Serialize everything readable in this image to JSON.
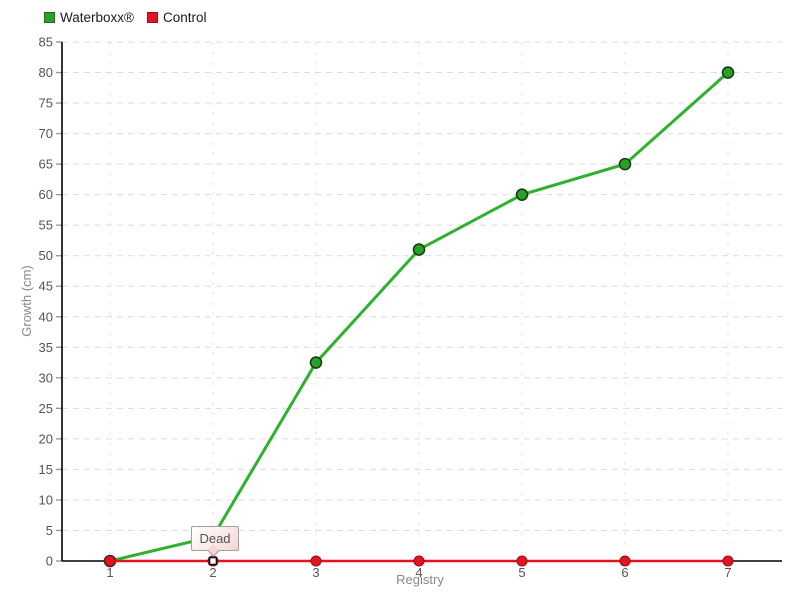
{
  "chart_data": {
    "type": "line",
    "x": [
      1,
      2,
      3,
      4,
      5,
      6,
      7
    ],
    "series": [
      {
        "name": "Waterboxx®",
        "color": "#2eb22e",
        "marker_fill": "#27a127",
        "marker_stroke": "#143f14",
        "values": [
          0,
          4,
          32.5,
          51,
          60,
          65,
          80
        ]
      },
      {
        "name": "Control",
        "color": "#e11422",
        "marker_fill": "#e11422",
        "marker_stroke": "#9d0f18",
        "values": [
          0,
          0,
          0,
          0,
          0,
          0,
          0
        ]
      }
    ],
    "title": "",
    "xlabel": "Registry",
    "ylabel": "Growth (cm)",
    "ylim": [
      0,
      85
    ],
    "ytick_step": 5,
    "grid": "dashed",
    "legend_position": "top-left",
    "annotation": {
      "text": "Dead",
      "series": "Control",
      "x": 2,
      "y": 0
    }
  }
}
